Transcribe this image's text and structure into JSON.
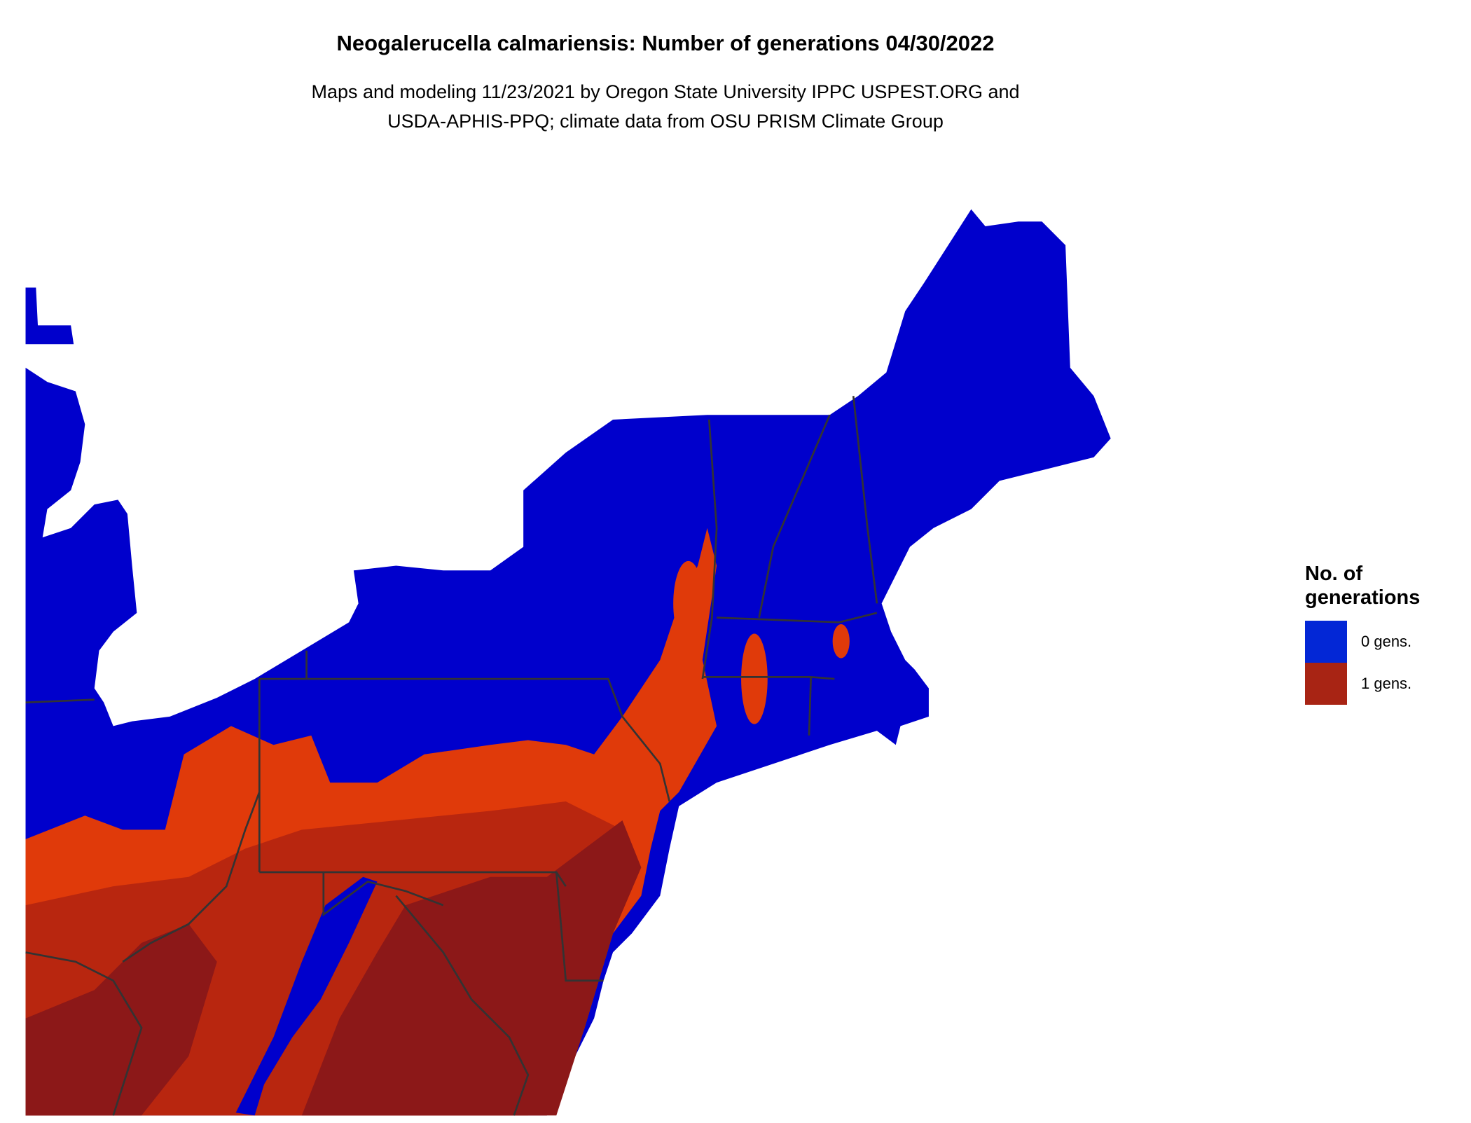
{
  "title": "Neogalerucella calmariensis: Number of generations 04/30/2022",
  "subtitle_lines": [
    "Maps and modeling 11/23/2021 by Oregon State University IPPC USPEST.ORG and",
    "USDA-APHIS-PPQ; climate data from OSU PRISM Climate Group"
  ],
  "legend": {
    "title_lines": [
      "No. of",
      "generations"
    ],
    "items": [
      {
        "label": "0 gens.",
        "color": "#0327d6"
      },
      {
        "label": "1 gens.",
        "color": "#a82414"
      }
    ]
  },
  "map_colors": {
    "zero_gens": "#0000cc",
    "one_gen_light": "#e03a0a",
    "one_gen_mid": "#b8260f",
    "one_gen_dark": "#8c1818",
    "boundary": "#333333"
  },
  "chart_data": {
    "type": "heatmap",
    "title": "Neogalerucella calmariensis: Number of generations 04/30/2022",
    "region": "Northeastern United States",
    "categories": [
      "0 gens.",
      "1 gens."
    ],
    "legend_position": "right"
  }
}
